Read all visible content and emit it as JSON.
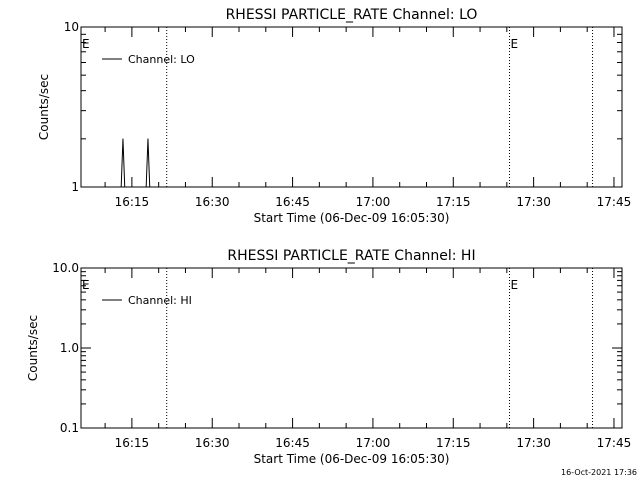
{
  "footer": {
    "timestamp": "16-Oct-2021 17:36"
  },
  "chart_data": [
    {
      "type": "line",
      "title": "RHESSI PARTICLE_RATE Channel: LO",
      "xlabel": "Start Time (06-Dec-09 16:05:30)",
      "ylabel": "Counts/sec",
      "yscale": "log",
      "ylim": [
        1,
        10
      ],
      "yticks": [
        1,
        10
      ],
      "ytick_labels": [
        "1",
        "10"
      ],
      "xlim": [
        "16:05:30",
        "17:46:30"
      ],
      "xtick_labels": [
        "16:15",
        "16:30",
        "16:45",
        "17:00",
        "17:15",
        "17:30",
        "17:45"
      ],
      "event_lines": [
        "16:21:30",
        "17:25:30",
        "17:41:00"
      ],
      "event_markers": [
        {
          "label": "E",
          "time": "16:05:30"
        },
        {
          "label": "E",
          "time": "17:25:30"
        }
      ],
      "legend_position": "top-left",
      "series": [
        {
          "name": "Channel: LO",
          "color": "#000000",
          "x": [
            "16:13:00",
            "16:13:20",
            "16:13:40",
            "16:14:00",
            "16:17:40",
            "16:18:00",
            "16:18:20",
            "16:18:40"
          ],
          "y": [
            1,
            2,
            1,
            1,
            1,
            2,
            1,
            1
          ]
        }
      ]
    },
    {
      "type": "line",
      "title": "RHESSI PARTICLE_RATE Channel: HI",
      "xlabel": "Start Time (06-Dec-09 16:05:30)",
      "ylabel": "Counts/sec",
      "yscale": "log",
      "ylim": [
        0.1,
        10
      ],
      "yticks": [
        0.1,
        1,
        10
      ],
      "ytick_labels": [
        "0.1",
        "1.0",
        "10.0"
      ],
      "xlim": [
        "16:05:30",
        "17:46:30"
      ],
      "xtick_labels": [
        "16:15",
        "16:30",
        "16:45",
        "17:00",
        "17:15",
        "17:30",
        "17:45"
      ],
      "event_lines": [
        "16:21:30",
        "17:25:30",
        "17:41:00"
      ],
      "event_markers": [
        {
          "label": "E",
          "time": "16:05:30"
        },
        {
          "label": "E",
          "time": "17:25:30"
        }
      ],
      "legend_position": "top-left",
      "series": [
        {
          "name": "Channel: HI",
          "color": "#000000",
          "x": [],
          "y": []
        }
      ]
    }
  ]
}
